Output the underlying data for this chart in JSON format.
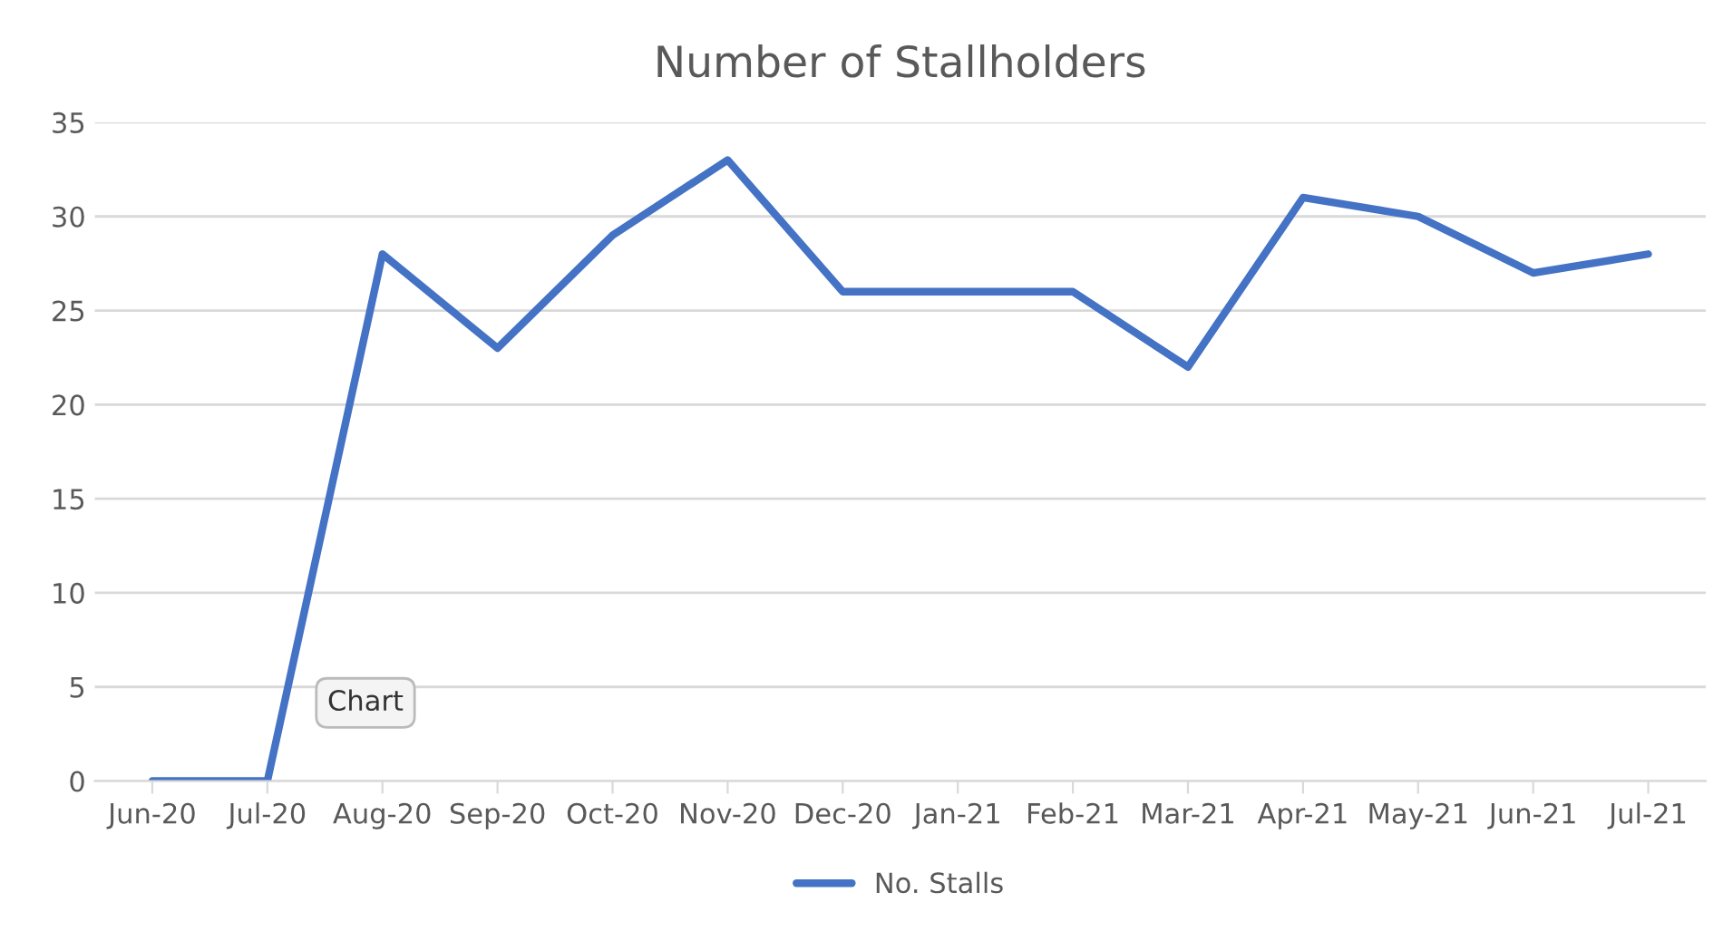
{
  "chart_data": {
    "type": "line",
    "title": "Number of Stallholders",
    "categories": [
      "Jun-20",
      "Jul-20",
      "Aug-20",
      "Sep-20",
      "Oct-20",
      "Nov-20",
      "Dec-20",
      "Jan-21",
      "Feb-21",
      "Mar-21",
      "Apr-21",
      "May-21",
      "Jun-21",
      "Jul-21"
    ],
    "series": [
      {
        "name": "No. Stalls",
        "color": "#4472c4",
        "values": [
          0,
          0,
          28,
          23,
          29,
          33,
          26,
          26,
          26,
          22,
          31,
          30,
          27,
          28
        ]
      }
    ],
    "ylim": [
      0,
      35
    ],
    "yticks": [
      0,
      5,
      10,
      15,
      20,
      25,
      30,
      35
    ],
    "grid": "y",
    "legend": "bottom",
    "marker": "none",
    "line_style": "solid",
    "annotations": [
      "Chart"
    ]
  }
}
